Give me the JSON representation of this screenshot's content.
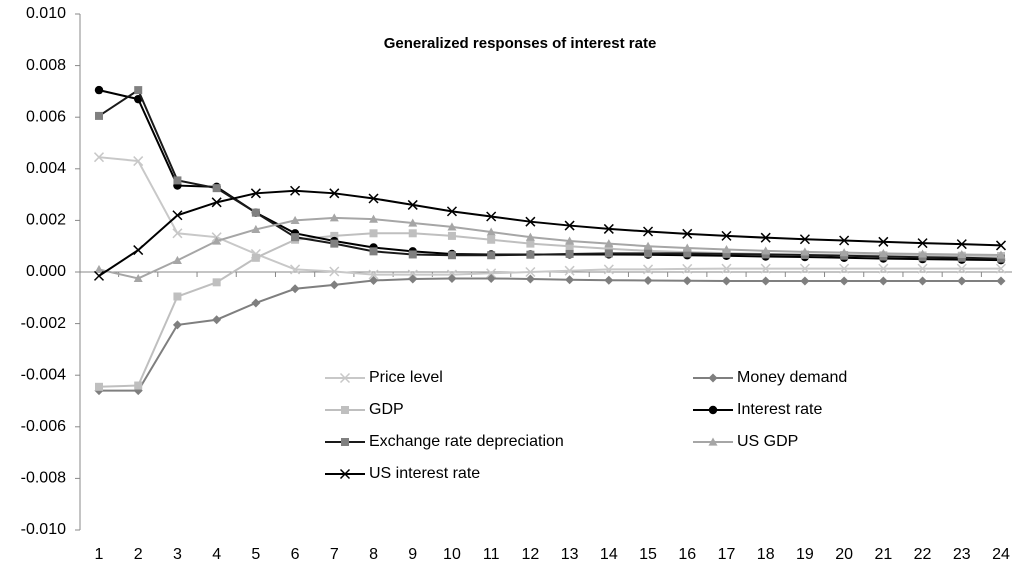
{
  "chart_data": {
    "type": "line",
    "title": "Generalized responses of interest rate",
    "categories": [
      1,
      2,
      3,
      4,
      5,
      6,
      7,
      8,
      9,
      10,
      11,
      12,
      13,
      14,
      15,
      16,
      17,
      18,
      19,
      20,
      21,
      22,
      23,
      24
    ],
    "ylim": [
      -0.01,
      0.01
    ],
    "yticks": [
      {
        "value": 0.01,
        "label": "0.010"
      },
      {
        "value": 0.008,
        "label": "0.008"
      },
      {
        "value": 0.006,
        "label": "0.006"
      },
      {
        "value": 0.004,
        "label": "0.004"
      },
      {
        "value": 0.002,
        "label": "0.002"
      },
      {
        "value": 0,
        "label": "0.000"
      },
      {
        "value": -0.002,
        "label": "-0.002"
      },
      {
        "value": -0.004,
        "label": "-0.004"
      },
      {
        "value": -0.006,
        "label": "-0.006"
      },
      {
        "value": -0.008,
        "label": "-0.008"
      },
      {
        "value": -0.01,
        "label": "-0.010"
      }
    ],
    "grid": false,
    "series": [
      {
        "name": "Price level",
        "color": "#c8c8c8",
        "marker": "x",
        "values": [
          0.00445,
          0.0043,
          0.0015,
          0.00135,
          0.0007,
          0.0001,
          2e-05,
          -0.0001,
          -0.0001,
          -0.0001,
          -5e-05,
          0,
          5e-05,
          0.0001,
          0.0001,
          0.00012,
          0.00013,
          0.00013,
          0.00013,
          0.00013,
          0.00013,
          0.00013,
          0.00013,
          0.00013
        ]
      },
      {
        "name": "Money demand",
        "color": "#7f7f7f",
        "marker": "diamond",
        "values": [
          -0.0046,
          -0.0046,
          -0.00205,
          -0.00185,
          -0.0012,
          -0.00065,
          -0.0005,
          -0.00033,
          -0.00027,
          -0.00025,
          -0.00025,
          -0.00027,
          -0.0003,
          -0.00032,
          -0.00033,
          -0.00034,
          -0.00035,
          -0.00035,
          -0.00035,
          -0.00035,
          -0.00035,
          -0.00035,
          -0.00035,
          -0.00035
        ]
      },
      {
        "name": "GDP",
        "color": "#bfbfbf",
        "marker": "square",
        "values": [
          -0.00445,
          -0.0044,
          -0.00095,
          -0.0004,
          0.00055,
          0.00125,
          0.0014,
          0.0015,
          0.0015,
          0.0014,
          0.00125,
          0.0011,
          0.001,
          0.0009,
          0.00082,
          0.00077,
          0.00073,
          0.0007,
          0.00068,
          0.00066,
          0.00065,
          0.00064,
          0.00063,
          0.00062
        ]
      },
      {
        "name": "Interest rate",
        "color": "#000000",
        "marker": "circle",
        "values": [
          0.00705,
          0.0067,
          0.00335,
          0.0033,
          0.0023,
          0.0015,
          0.0012,
          0.00095,
          0.0008,
          0.0007,
          0.00068,
          0.00068,
          0.00068,
          0.00068,
          0.00067,
          0.00065,
          0.00063,
          0.0006,
          0.00058,
          0.00055,
          0.00052,
          0.0005,
          0.00048,
          0.00046
        ]
      },
      {
        "name": "Exchange rate depreciation",
        "color": "#1a1a1a",
        "marker_color": "#808080",
        "marker": "square",
        "values": [
          0.00605,
          0.00705,
          0.00355,
          0.00325,
          0.0023,
          0.00135,
          0.0011,
          0.0008,
          0.00068,
          0.00065,
          0.00065,
          0.00067,
          0.0007,
          0.00072,
          0.00072,
          0.00072,
          0.0007,
          0.00068,
          0.00066,
          0.00063,
          0.0006,
          0.00057,
          0.00055,
          0.00052
        ]
      },
      {
        "name": "US GDP",
        "color": "#a6a6a6",
        "marker": "triangle",
        "values": [
          0.0001,
          -0.00025,
          0.00045,
          0.0012,
          0.00165,
          0.002,
          0.0021,
          0.00205,
          0.0019,
          0.00175,
          0.00155,
          0.00135,
          0.0012,
          0.0011,
          0.001,
          0.00093,
          0.00087,
          0.00082,
          0.00078,
          0.00075,
          0.00072,
          0.0007,
          0.00068,
          0.00066
        ]
      },
      {
        "name": "US interest rate",
        "color": "#000000",
        "marker": "x",
        "values": [
          -0.00015,
          0.00085,
          0.0022,
          0.0027,
          0.00305,
          0.00315,
          0.00305,
          0.00285,
          0.0026,
          0.00235,
          0.00215,
          0.00195,
          0.0018,
          0.00167,
          0.00157,
          0.00148,
          0.0014,
          0.00133,
          0.00127,
          0.00122,
          0.00117,
          0.00112,
          0.00108,
          0.00103
        ]
      }
    ]
  }
}
